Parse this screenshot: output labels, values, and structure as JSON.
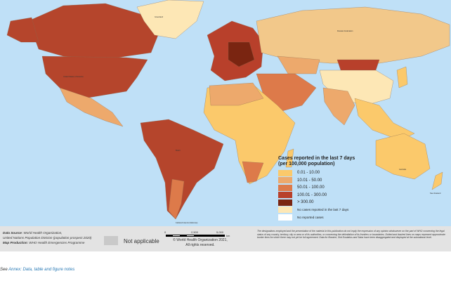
{
  "legend": {
    "title_line1": "Cases reported in the last 7 days",
    "title_line2": "(per 100,000 population)",
    "items": [
      {
        "label": "0.01 - 10.00",
        "color": "#fbc96b"
      },
      {
        "label": "10.01 - 50.00",
        "color": "#eda96c"
      },
      {
        "label": "50.01 - 100.00",
        "color": "#dd7a4a"
      },
      {
        "label": "100.01 - 300.00",
        "color": "#b8402b"
      },
      {
        "label": "> 300.00",
        "color": "#7a2511"
      },
      {
        "label": "No cases reported in the last 7 days",
        "color": "#fde7b5"
      },
      {
        "label": "No reported cases",
        "color": "#ffffff"
      }
    ]
  },
  "footer": {
    "data_source_label": "Data Source",
    "data_source": "World Health Organization,",
    "data_source_line2": "United Nations Population Division (population prospect 2020)",
    "map_production_label": "Map Production",
    "map_production": "WHO Health Emergencies Programme",
    "not_applicable": "Not applicable",
    "not_applicable_color": "#c9c9c9",
    "scale_ticks": [
      "0",
      "2,500",
      "5,000"
    ],
    "scale_unit": "km",
    "copyright_line1": "© World Health Organization 2021,",
    "copyright_line2": "All rights reserved.",
    "disclaimer": "The designations employed and the presentation of the material in this publication do not imply the expression of any opinion whatsoever on the part of WHO concerning the legal status of any country, territory, city or area or of its authorities, or concerning the delimitation of its frontiers or boundaries. Dotted and dashed lines on maps represent approximate border lines for which there may not yet be full agreement. Data for Bonaire, Sint Eustatius and Saba have been disaggregated and displayed at the subnational level."
  },
  "note": {
    "prefix": "See ",
    "link": "Annex: Data, table and figure notes"
  },
  "map": {
    "ocean_color": "#bfe0f7",
    "labels": [
      "Greenland",
      "Russian Federation",
      "United States of America",
      "Brazil",
      "Australia",
      "New Zealand",
      "Falkland Islands (Malvinas)"
    ]
  }
}
